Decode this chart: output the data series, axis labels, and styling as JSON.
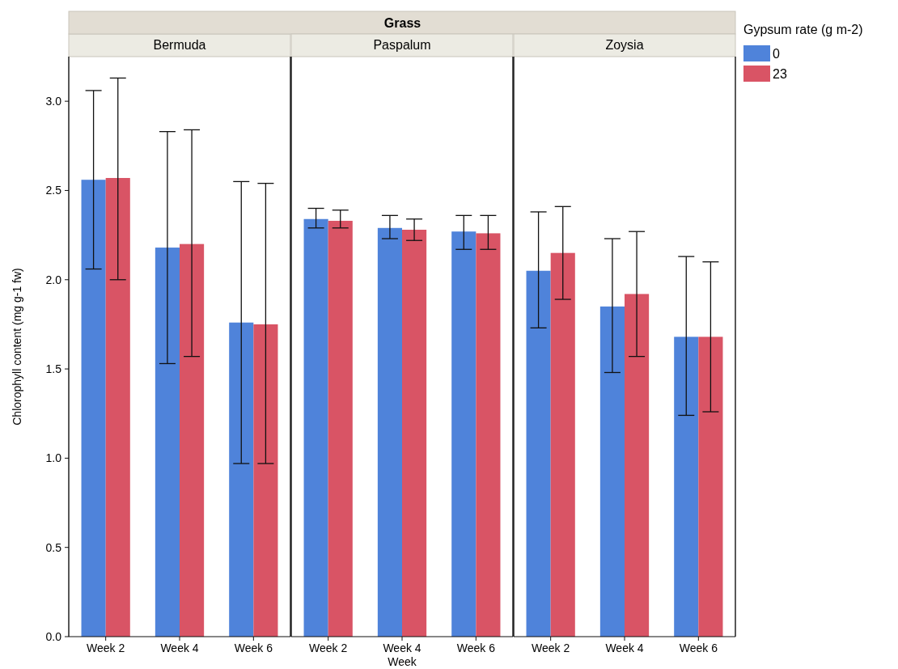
{
  "chart_data": [
    {
      "type": "bar",
      "title": "Bermuda",
      "annotations": [
        "Grass"
      ],
      "ylabel": "Chlorophyll content (mg g-1 fw)",
      "categories": [
        "Week 2",
        "Week 4",
        "Week 6"
      ],
      "ylim": [
        0,
        3.25
      ],
      "yticks": [
        {
          "value": 0,
          "label": "0.0"
        },
        {
          "value": 0.5,
          "label": "0.5"
        },
        {
          "value": 1,
          "label": "1.0"
        },
        {
          "value": 1.5,
          "label": "1.5"
        },
        {
          "value": 2,
          "label": "2.0"
        },
        {
          "value": 2.5,
          "label": "2.5"
        },
        {
          "value": 3,
          "label": "3.0"
        }
      ],
      "grid": false,
      "legend": false,
      "series": [
        {
          "color": "#4f83da",
          "values": [
            2.56,
            2.18,
            1.76
          ],
          "errors": [
            [
              2.06,
              3.06
            ],
            [
              1.53,
              2.83
            ],
            [
              0.97,
              2.55
            ]
          ]
        },
        {
          "color": "#d95465",
          "values": [
            2.57,
            2.2,
            1.75
          ],
          "errors": [
            [
              2.0,
              3.13
            ],
            [
              1.57,
              2.84
            ],
            [
              0.97,
              2.54
            ]
          ]
        }
      ]
    },
    {
      "type": "bar",
      "title": "Paspalum",
      "xlabel": "Week",
      "categories": [
        "Week 2",
        "Week 4",
        "Week 6"
      ],
      "ylim": [
        0,
        3.25
      ],
      "tick_labels": "x",
      "grid": false,
      "legend": false,
      "series": [
        {
          "color": "#4f83da",
          "values": [
            2.34,
            2.29,
            2.27
          ],
          "errors": [
            [
              2.29,
              2.4
            ],
            [
              2.23,
              2.36
            ],
            [
              2.17,
              2.36
            ]
          ]
        },
        {
          "color": "#d95465",
          "values": [
            2.33,
            2.28,
            2.26
          ],
          "errors": [
            [
              2.29,
              2.39
            ],
            [
              2.22,
              2.34
            ],
            [
              2.17,
              2.36
            ]
          ]
        }
      ]
    },
    {
      "type": "bar",
      "title": "Zoysia",
      "legend_title": "Gypsum rate (g m-2)",
      "categories": [
        "Week 2",
        "Week 4",
        "Week 6"
      ],
      "ylim": [
        0,
        3.25
      ],
      "tick_labels": "x",
      "grid": false,
      "legend": "right",
      "series": [
        {
          "name": "0",
          "color": "#4f83da",
          "values": [
            2.05,
            1.85,
            1.68
          ],
          "errors": [
            [
              1.73,
              2.38
            ],
            [
              1.48,
              2.23
            ],
            [
              1.24,
              2.13
            ]
          ]
        },
        {
          "name": "23",
          "color": "#d95465",
          "values": [
            2.15,
            1.92,
            1.68
          ],
          "errors": [
            [
              1.89,
              2.41
            ],
            [
              1.57,
              2.27
            ],
            [
              1.26,
              2.1
            ]
          ]
        }
      ]
    }
  ]
}
